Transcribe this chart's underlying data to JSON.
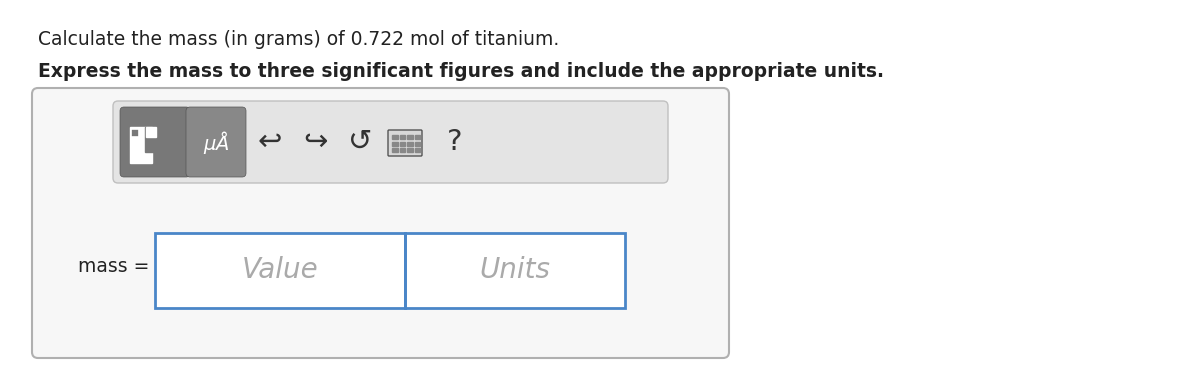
{
  "line1": "Calculate the mass (in grams) of 0.722 mol of titanium.",
  "line2": "Express the mass to three significant figures and include the appropriate units.",
  "label_mass": "mass =",
  "placeholder_value": "Value",
  "placeholder_units": "Units",
  "bg_color": "#ffffff",
  "outer_box_edge": "#b0b0b0",
  "outer_box_face": "#f7f7f7",
  "toolbar_edge": "#c0c0c0",
  "toolbar_face": "#e4e4e4",
  "btn1_face": "#787878",
  "btn2_face": "#888888",
  "input_box_border": "#4a86c8",
  "input_box_face": "#ffffff",
  "placeholder_color": "#aaaaaa",
  "icon_color": "#333333",
  "text_color": "#222222"
}
